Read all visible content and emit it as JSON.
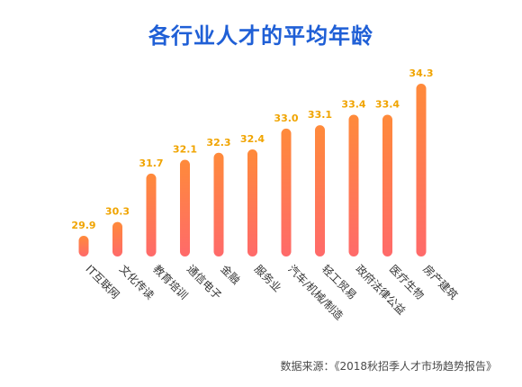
{
  "title": "各行业人才的平均年龄",
  "source": "数据来源：《2018秋招季人才市场趋势报告》",
  "colors": {
    "title": "#1f5fd6",
    "bar_top": "#ff8a3a",
    "bar_bottom": "#ff6a6a",
    "value_label": "#f0a400",
    "axis_label": "#333333"
  },
  "chart_data": {
    "type": "bar",
    "categories": [
      "IT互联网",
      "文化传读",
      "教育培训",
      "通信电子",
      "金融",
      "服务业",
      "汽车/机械/制造",
      "轻工贸易",
      "政府法律公益",
      "医疗生物",
      "房产建筑"
    ],
    "values": [
      29.9,
      30.3,
      31.7,
      32.1,
      32.3,
      32.4,
      33.0,
      33.1,
      33.4,
      33.4,
      34.3
    ],
    "value_labels": [
      "29.9",
      "30.3",
      "31.7",
      "32.1",
      "32.3",
      "32.4",
      "33.0",
      "33.1",
      "33.4",
      "33.4",
      "34.3"
    ],
    "title": "各行业人才的平均年龄",
    "xlabel": "",
    "ylabel": "",
    "ylim": [
      29.3,
      34.3
    ],
    "grid": false,
    "legend": "none"
  }
}
